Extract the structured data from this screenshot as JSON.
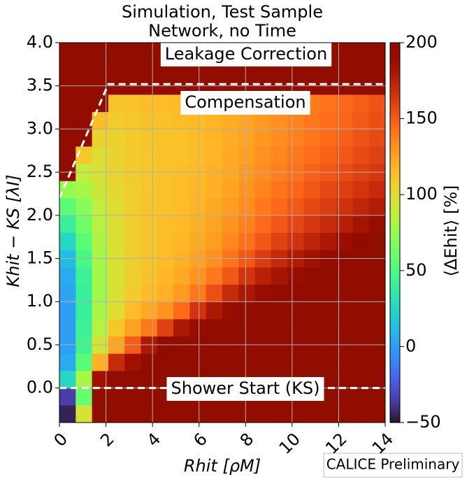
{
  "chart_data": {
    "type": "heatmap",
    "title": [
      "Simulation, Test Sample",
      "Network, no Time"
    ],
    "x_label": "Rhit [ρM]",
    "y_label": "Khit − KS [λI]",
    "colorbar_label": "⟨ΔEhit⟩ [%]",
    "colormap": "turbo",
    "grid": true,
    "xlim": [
      0,
      14
    ],
    "ylim": [
      -0.4,
      4.0
    ],
    "xticks": [
      0,
      2,
      4,
      6,
      8,
      10,
      12,
      14
    ],
    "yticks": [
      {
        "value": 0,
        "label": "0.0"
      },
      0.5,
      {
        "value": 1,
        "label": "1.0"
      },
      1.5,
      {
        "value": 2,
        "label": "2.0"
      },
      2.5,
      {
        "value": 3,
        "label": "3.0"
      },
      3.5,
      {
        "value": 4,
        "label": "4.0"
      }
    ],
    "clim": [
      -50,
      200
    ],
    "cticks": [
      {
        "value": -50,
        "label": "−50"
      },
      0,
      50,
      100,
      150,
      200
    ],
    "xbins": [
      0,
      0.7,
      1.4,
      2.1,
      2.8,
      3.5,
      4.2,
      4.9,
      5.6,
      6.3,
      7,
      7.7,
      8.4,
      9.1,
      9.8,
      10.5,
      11.2,
      11.9,
      12.6,
      13.3,
      14
    ],
    "ybins": [
      -0.4,
      -0.2,
      0,
      0.2,
      0.4,
      0.6,
      0.8,
      1,
      1.2,
      1.4,
      1.6,
      1.8,
      2,
      2.2,
      2.4,
      2.6,
      2.8,
      3,
      3.2,
      3.4,
      3.6,
      3.8,
      4
    ],
    "z": [
      [
        -45,
        95,
        200,
        200,
        200,
        200,
        200,
        200,
        200,
        200,
        200,
        200,
        200,
        200,
        200,
        200,
        200,
        200,
        200,
        200
      ],
      [
        -35,
        60,
        200,
        200,
        200,
        200,
        200,
        200,
        200,
        200,
        200,
        200,
        200,
        200,
        200,
        200,
        200,
        200,
        200,
        200
      ],
      [
        25,
        80,
        185,
        200,
        200,
        200,
        200,
        200,
        200,
        200,
        200,
        200,
        200,
        200,
        200,
        200,
        200,
        200,
        200,
        200
      ],
      [
        5,
        55,
        120,
        170,
        185,
        200,
        200,
        200,
        200,
        200,
        200,
        200,
        200,
        200,
        200,
        200,
        200,
        200,
        200,
        200
      ],
      [
        0,
        45,
        95,
        125,
        150,
        180,
        195,
        200,
        200,
        200,
        200,
        200,
        200,
        200,
        200,
        200,
        200,
        200,
        200,
        200
      ],
      [
        0,
        42,
        85,
        110,
        125,
        140,
        160,
        180,
        190,
        200,
        200,
        200,
        200,
        200,
        200,
        200,
        200,
        200,
        200,
        200
      ],
      [
        0,
        40,
        80,
        100,
        115,
        122,
        130,
        145,
        165,
        180,
        190,
        200,
        200,
        200,
        200,
        200,
        200,
        200,
        200,
        200
      ],
      [
        2,
        40,
        78,
        98,
        108,
        115,
        120,
        128,
        140,
        155,
        170,
        180,
        190,
        200,
        200,
        200,
        200,
        200,
        200,
        200
      ],
      [
        5,
        42,
        78,
        97,
        106,
        112,
        117,
        122,
        130,
        140,
        152,
        165,
        175,
        182,
        190,
        200,
        200,
        200,
        200,
        200
      ],
      [
        12,
        48,
        80,
        97,
        106,
        111,
        115,
        119,
        125,
        132,
        142,
        152,
        162,
        170,
        178,
        185,
        192,
        200,
        200,
        200
      ],
      [
        25,
        55,
        83,
        98,
        106,
        111,
        114,
        117,
        122,
        127,
        135,
        143,
        152,
        160,
        167,
        173,
        180,
        188,
        195,
        200
      ],
      [
        40,
        62,
        86,
        99,
        107,
        111,
        114,
        116,
        120,
        124,
        130,
        137,
        145,
        152,
        158,
        164,
        170,
        176,
        183,
        190
      ],
      [
        55,
        70,
        90,
        100,
        107,
        111,
        113,
        115,
        118,
        122,
        127,
        133,
        140,
        146,
        152,
        157,
        162,
        167,
        172,
        177
      ],
      [
        75,
        80,
        93,
        102,
        107,
        110,
        112,
        114,
        117,
        120,
        125,
        130,
        136,
        142,
        147,
        152,
        157,
        161,
        165,
        170
      ],
      [
        200,
        90,
        97,
        104,
        108,
        110,
        112,
        114,
        116,
        119,
        123,
        128,
        133,
        138,
        143,
        148,
        152,
        156,
        160,
        164
      ],
      [
        200,
        110,
        100,
        105,
        108,
        110,
        112,
        113,
        115,
        118,
        122,
        126,
        131,
        135,
        140,
        144,
        148,
        152,
        156,
        160
      ],
      [
        200,
        200,
        105,
        106,
        109,
        111,
        112,
        113,
        115,
        118,
        121,
        125,
        129,
        133,
        137,
        141,
        145,
        149,
        153,
        157
      ],
      [
        200,
        200,
        115,
        108,
        110,
        112,
        113,
        114,
        116,
        118,
        121,
        124,
        128,
        132,
        136,
        140,
        144,
        147,
        151,
        155
      ],
      [
        200,
        200,
        200,
        112,
        113,
        114,
        115,
        116,
        118,
        120,
        122,
        125,
        128,
        132,
        135,
        139,
        142,
        146,
        149,
        153
      ],
      [
        200,
        200,
        200,
        200,
        200,
        200,
        200,
        200,
        200,
        200,
        200,
        200,
        200,
        200,
        200,
        200,
        200,
        200,
        200,
        200
      ],
      [
        200,
        200,
        200,
        200,
        200,
        200,
        200,
        200,
        200,
        200,
        200,
        200,
        200,
        200,
        200,
        200,
        200,
        200,
        200,
        200
      ],
      [
        200,
        200,
        200,
        200,
        200,
        200,
        200,
        200,
        200,
        200,
        200,
        200,
        200,
        200,
        200,
        200,
        200,
        200,
        200,
        200
      ]
    ],
    "lines": [
      {
        "x": [
          0,
          2.1,
          14
        ],
        "y": [
          2.2,
          3.52,
          3.52
        ],
        "color": "#ffffff"
      },
      {
        "x": [
          0,
          14
        ],
        "y": [
          0,
          0
        ],
        "color": "#ffffff"
      }
    ],
    "annotations": [
      "Leakage Correction",
      "Compensation",
      "Shower Start (KS)"
    ],
    "watermark": "CALICE Preliminary"
  }
}
